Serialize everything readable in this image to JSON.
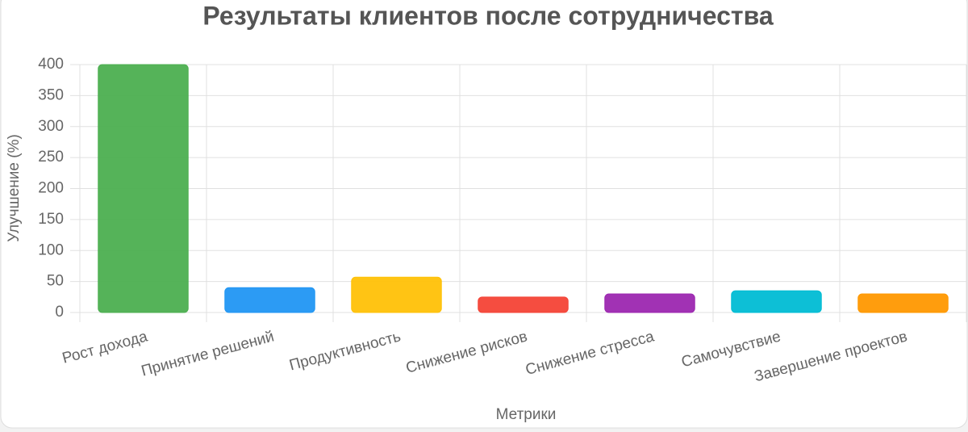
{
  "chart_data": {
    "type": "bar",
    "title": "Результаты клиентов после сотрудничества",
    "x_label": "Метрики",
    "y_label": "Улучшение (%)",
    "categories": [
      "Рост дохода",
      "Принятие решений",
      "Продуктивность",
      "Снижение рисков",
      "Снижение стресса",
      "Самочувствие",
      "Завершение проектов"
    ],
    "values": [
      400,
      40,
      57,
      25,
      30,
      35,
      30
    ],
    "colors": [
      "#4caf50",
      "#2196f3",
      "#ffc107",
      "#f44336",
      "#9c27b0",
      "#00bcd4",
      "#ff9800"
    ],
    "ylim": [
      0,
      400
    ],
    "yticks": [
      0,
      50,
      100,
      150,
      200,
      250,
      300,
      350,
      400
    ],
    "grid": true
  }
}
